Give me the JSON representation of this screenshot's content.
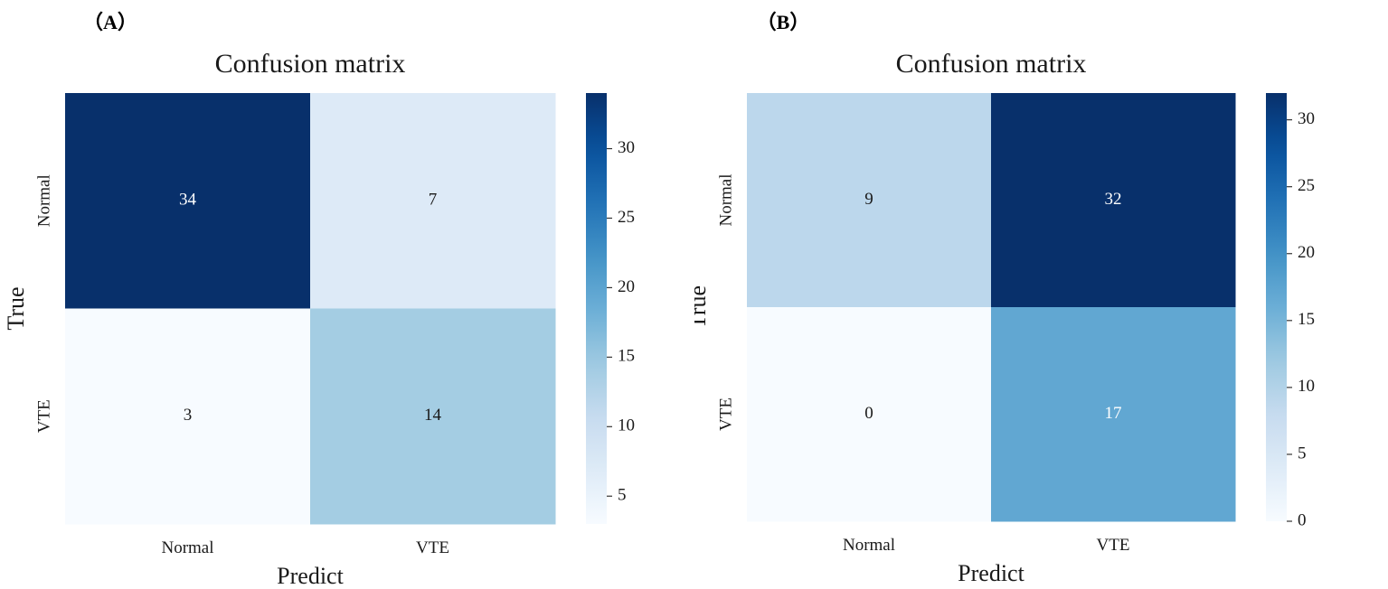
{
  "panels": [
    {
      "label": "（A）",
      "chart_data": {
        "type": "heatmap",
        "title": "Confusion matrix",
        "xlabel": "Predict",
        "ylabel": "True",
        "x_categories": [
          "Normal",
          "VTE"
        ],
        "y_categories": [
          "Normal",
          "VTE"
        ],
        "values": [
          [
            34,
            7
          ],
          [
            3,
            14
          ]
        ],
        "colormap": "Blues",
        "color_range": [
          3,
          34
        ],
        "colorbar_ticks": [
          5,
          10,
          15,
          20,
          25,
          30
        ],
        "colorbar_placement": "right",
        "grid": false
      }
    },
    {
      "label": "（B）",
      "chart_data": {
        "type": "heatmap",
        "title": "Confusion matrix",
        "xlabel": "Predict",
        "ylabel": "True",
        "x_categories": [
          "Normal",
          "VTE"
        ],
        "y_categories": [
          "Normal",
          "VTE"
        ],
        "values": [
          [
            9,
            32
          ],
          [
            0,
            17
          ]
        ],
        "colormap": "Blues",
        "color_range": [
          0,
          32
        ],
        "colorbar_ticks": [
          0,
          5,
          10,
          15,
          20,
          25,
          30
        ],
        "colorbar_placement": "right",
        "grid": false
      }
    }
  ]
}
